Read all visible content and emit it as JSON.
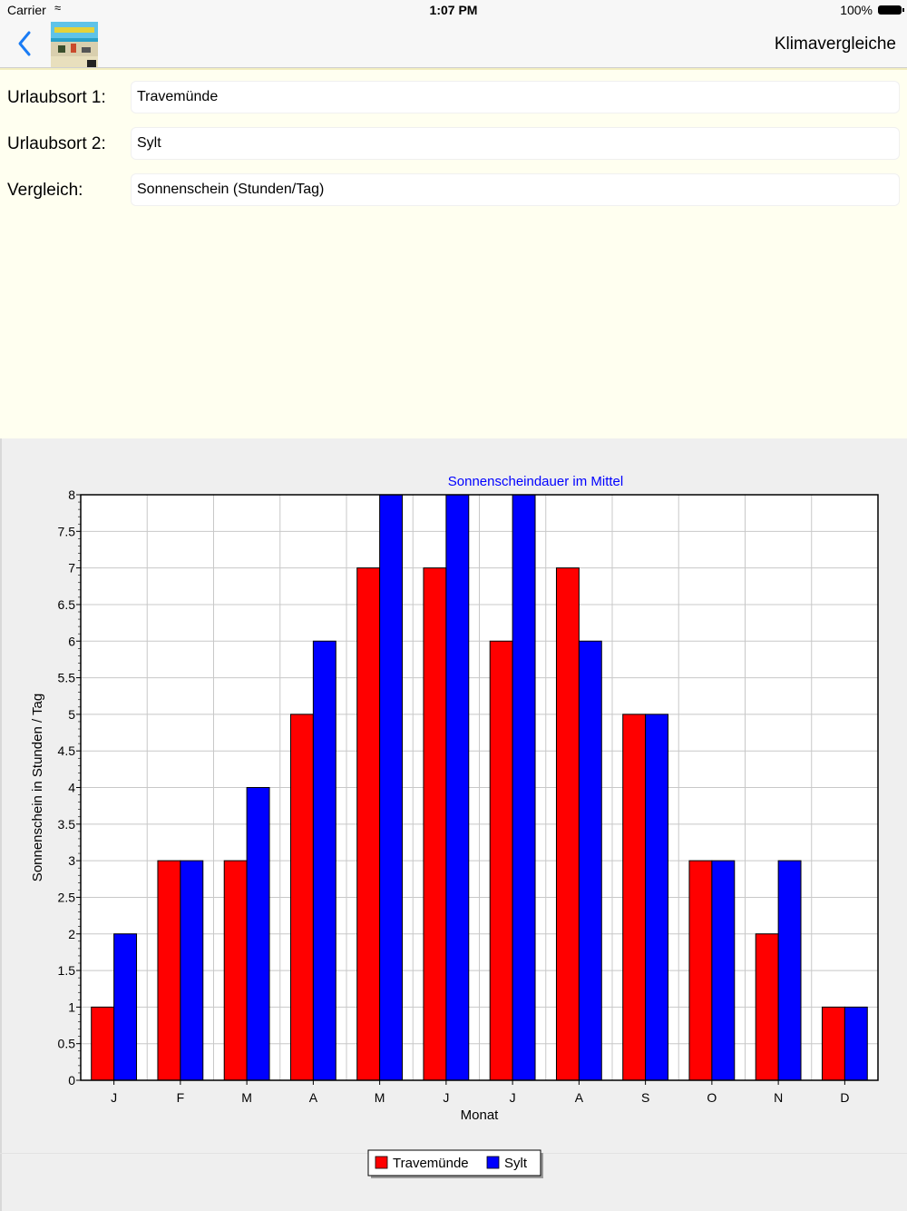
{
  "status": {
    "carrier": "Carrier",
    "time": "1:07 PM",
    "battery": "100%"
  },
  "nav": {
    "title": "Klimavergleiche"
  },
  "form": {
    "rows": [
      {
        "label": "Urlaubsort 1:",
        "value": "Travemünde"
      },
      {
        "label": "Urlaubsort 2:",
        "value": "Sylt"
      },
      {
        "label": "Vergleich:",
        "value": "Sonnenschein (Stunden/Tag)"
      }
    ]
  },
  "colors": {
    "series1": "#ff0000",
    "series2": "#0000ff",
    "title": "#0000ff"
  },
  "chart_data": {
    "type": "bar",
    "title": "Sonnenscheindauer im Mittel",
    "xlabel": "Monat",
    "ylabel": "Sonnenschein in Stunden / Tag",
    "categories": [
      "J",
      "F",
      "M",
      "A",
      "M",
      "J",
      "J",
      "A",
      "S",
      "O",
      "N",
      "D"
    ],
    "series": [
      {
        "name": "Travemünde",
        "values": [
          1,
          3,
          3,
          5,
          7,
          7,
          6,
          7,
          5,
          3,
          2,
          1
        ]
      },
      {
        "name": "Sylt",
        "values": [
          2,
          3,
          4,
          6,
          8,
          8,
          8,
          6,
          5,
          3,
          3,
          1
        ]
      }
    ],
    "ylim": [
      0,
      8
    ],
    "yticks": [
      "0",
      "0.5",
      "1",
      "1.5",
      "2",
      "2.5",
      "3",
      "3.5",
      "4",
      "4.5",
      "5",
      "5.5",
      "6",
      "6.5",
      "7",
      "7.5",
      "8"
    ],
    "grid": true,
    "legend": "bottom"
  }
}
